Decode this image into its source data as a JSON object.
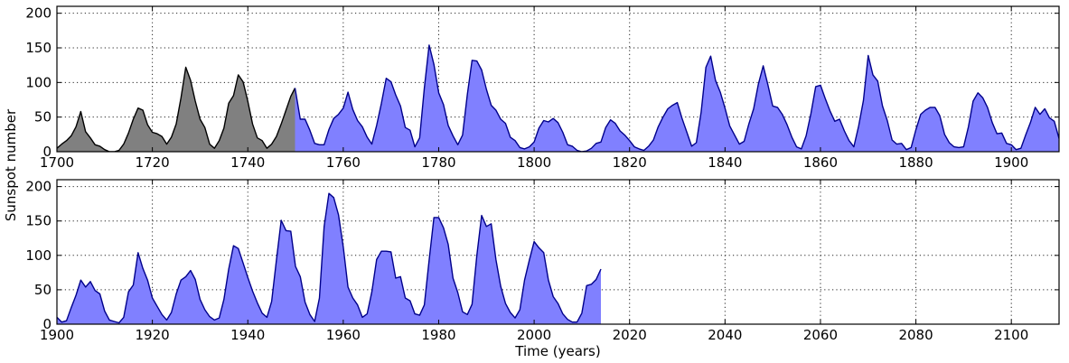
{
  "chart_data": [
    {
      "type": "area",
      "panel": "top",
      "xlim": [
        1700,
        1910
      ],
      "ylim": [
        0,
        210
      ],
      "xticks": [
        1700,
        1720,
        1740,
        1760,
        1780,
        1800,
        1820,
        1840,
        1860,
        1880,
        1900
      ],
      "yticks": [
        0,
        50,
        100,
        150,
        200
      ],
      "grid": true,
      "series": [
        {
          "color": "#808080",
          "edge": "#000000",
          "x": [
            1700,
            1701,
            1702,
            1703,
            1704,
            1705,
            1706,
            1707,
            1708,
            1709,
            1710,
            1711,
            1712,
            1713,
            1714,
            1715,
            1716,
            1717,
            1718,
            1719,
            1720,
            1721,
            1722,
            1723,
            1724,
            1725,
            1726,
            1727,
            1728,
            1729,
            1730,
            1731,
            1732,
            1733,
            1734,
            1735,
            1736,
            1737,
            1738,
            1739,
            1740,
            1741,
            1742,
            1743,
            1744,
            1745,
            1746,
            1747,
            1748,
            1749,
            1749.9
          ],
          "y": [
            5,
            11,
            16,
            23,
            36,
            58,
            29,
            20,
            10,
            8,
            3,
            0,
            0,
            2,
            11,
            27,
            47,
            63,
            60,
            39,
            28,
            26,
            22,
            11,
            21,
            40,
            78,
            122,
            103,
            73,
            47,
            35,
            11,
            5,
            16,
            34,
            70,
            81,
            111,
            101,
            73,
            40,
            20,
            16,
            5,
            11,
            22,
            40,
            60,
            80,
            92
          ]
        },
        {
          "color": "#8080ff",
          "edge": "#00008b",
          "x": [
            1749.9,
            1751,
            1752,
            1753,
            1754,
            1755,
            1756,
            1757,
            1758,
            1759,
            1760,
            1761,
            1762,
            1763,
            1764,
            1765,
            1766,
            1767,
            1768,
            1769,
            1770,
            1771,
            1772,
            1773,
            1774,
            1775,
            1776,
            1777,
            1778,
            1779,
            1780,
            1781,
            1782,
            1783,
            1784,
            1785,
            1786,
            1787,
            1788,
            1789,
            1790,
            1791,
            1792,
            1793,
            1794,
            1795,
            1796,
            1797,
            1798,
            1799,
            1800,
            1801,
            1802,
            1803,
            1804,
            1805,
            1806,
            1807,
            1808,
            1809,
            1810,
            1811,
            1812,
            1813,
            1814,
            1815,
            1816,
            1817,
            1818,
            1819,
            1820,
            1821,
            1822,
            1823,
            1824,
            1825,
            1826,
            1827,
            1828,
            1829,
            1830,
            1831,
            1832,
            1833,
            1834,
            1835,
            1836,
            1837,
            1838,
            1839,
            1840,
            1841,
            1842,
            1843,
            1844,
            1845,
            1846,
            1847,
            1848,
            1849,
            1850,
            1851,
            1852,
            1853,
            1854,
            1855,
            1856,
            1857,
            1858,
            1859,
            1860,
            1861,
            1862,
            1863,
            1864,
            1865,
            1866,
            1867,
            1868,
            1869,
            1870,
            1871,
            1872,
            1873,
            1874,
            1875,
            1876,
            1877,
            1878,
            1879,
            1880,
            1881,
            1882,
            1883,
            1884,
            1885,
            1886,
            1887,
            1888,
            1889,
            1890,
            1891,
            1892,
            1893,
            1894,
            1895,
            1896,
            1897,
            1898,
            1899,
            1900,
            1901,
            1902,
            1903,
            1904,
            1905,
            1906,
            1907,
            1908,
            1909,
            1910
          ],
          "y": [
            92,
            47,
            47,
            31,
            12,
            10,
            10,
            32,
            48,
            54,
            63,
            86,
            61,
            45,
            36,
            21,
            11,
            38,
            70,
            106,
            101,
            82,
            66,
            35,
            31,
            7,
            20,
            92,
            154,
            126,
            85,
            68,
            38,
            23,
            10,
            24,
            83,
            132,
            131,
            118,
            90,
            67,
            60,
            47,
            41,
            21,
            16,
            6,
            4,
            7,
            14,
            34,
            45,
            43,
            48,
            42,
            28,
            10,
            8,
            2,
            0,
            1,
            5,
            12,
            14,
            35,
            46,
            41,
            30,
            24,
            16,
            7,
            4,
            2,
            8,
            17,
            36,
            50,
            62,
            67,
            71,
            48,
            28,
            8,
            13,
            57,
            122,
            138,
            103,
            86,
            63,
            37,
            24,
            11,
            15,
            40,
            62,
            98,
            124,
            96,
            66,
            64,
            54,
            39,
            21,
            7,
            4,
            23,
            55,
            94,
            96,
            77,
            59,
            44,
            47,
            30,
            16,
            7,
            37,
            74,
            139,
            111,
            102,
            66,
            45,
            17,
            11,
            12,
            3,
            6,
            32,
            54,
            60,
            64,
            64,
            52,
            25,
            13,
            7,
            6,
            7,
            36,
            73,
            85,
            78,
            64,
            42,
            26,
            27,
            12,
            10,
            3,
            5,
            24,
            42,
            64,
            54,
            62,
            49,
            44,
            19
          ]
        }
      ]
    },
    {
      "type": "area",
      "panel": "bottom",
      "xlabel": "Time (years)",
      "xlim": [
        1900,
        2110
      ],
      "ylim": [
        0,
        210
      ],
      "xticks": [
        1900,
        1920,
        1940,
        1960,
        1980,
        2000,
        2020,
        2040,
        2060,
        2080,
        2100
      ],
      "yticks": [
        0,
        50,
        100,
        150,
        200
      ],
      "grid": true,
      "series": [
        {
          "color": "#8080ff",
          "edge": "#00008b",
          "x": [
            1900,
            1901,
            1902,
            1903,
            1904,
            1905,
            1906,
            1907,
            1908,
            1909,
            1910,
            1911,
            1912,
            1913,
            1914,
            1915,
            1916,
            1917,
            1918,
            1919,
            1920,
            1921,
            1922,
            1923,
            1924,
            1925,
            1926,
            1927,
            1928,
            1929,
            1930,
            1931,
            1932,
            1933,
            1934,
            1935,
            1936,
            1937,
            1938,
            1939,
            1940,
            1941,
            1942,
            1943,
            1944,
            1945,
            1946,
            1947,
            1948,
            1949,
            1950,
            1951,
            1952,
            1953,
            1954,
            1955,
            1956,
            1957,
            1958,
            1959,
            1960,
            1961,
            1962,
            1963,
            1964,
            1965,
            1966,
            1967,
            1968,
            1969,
            1970,
            1971,
            1972,
            1973,
            1974,
            1975,
            1976,
            1977,
            1978,
            1979,
            1980,
            1981,
            1982,
            1983,
            1984,
            1985,
            1986,
            1987,
            1988,
            1989,
            1990,
            1991,
            1992,
            1993,
            1994,
            1995,
            1996,
            1997,
            1998,
            1999,
            2000,
            2001,
            2002,
            2003,
            2004,
            2005,
            2006,
            2007,
            2008,
            2009,
            2010,
            2011,
            2012,
            2013,
            2014
          ],
          "y": [
            10,
            3,
            5,
            24,
            42,
            64,
            54,
            62,
            49,
            44,
            19,
            6,
            4,
            2,
            10,
            47,
            57,
            104,
            81,
            64,
            38,
            26,
            14,
            6,
            17,
            44,
            64,
            69,
            78,
            65,
            36,
            21,
            11,
            6,
            9,
            36,
            80,
            114,
            110,
            89,
            68,
            48,
            31,
            16,
            10,
            33,
            93,
            151,
            136,
            135,
            84,
            69,
            32,
            14,
            4,
            38,
            142,
            190,
            184,
            159,
            112,
            54,
            38,
            28,
            10,
            15,
            47,
            94,
            106,
            106,
            105,
            67,
            69,
            38,
            34,
            15,
            13,
            28,
            93,
            155,
            155,
            140,
            116,
            67,
            46,
            18,
            14,
            29,
            100,
            158,
            142,
            146,
            94,
            55,
            30,
            17,
            9,
            21,
            64,
            93,
            120,
            111,
            104,
            64,
            40,
            30,
            15,
            7,
            3,
            3,
            16,
            56,
            58,
            65,
            80
          ]
        }
      ]
    }
  ],
  "shared_ylabel": "Sunspot number"
}
